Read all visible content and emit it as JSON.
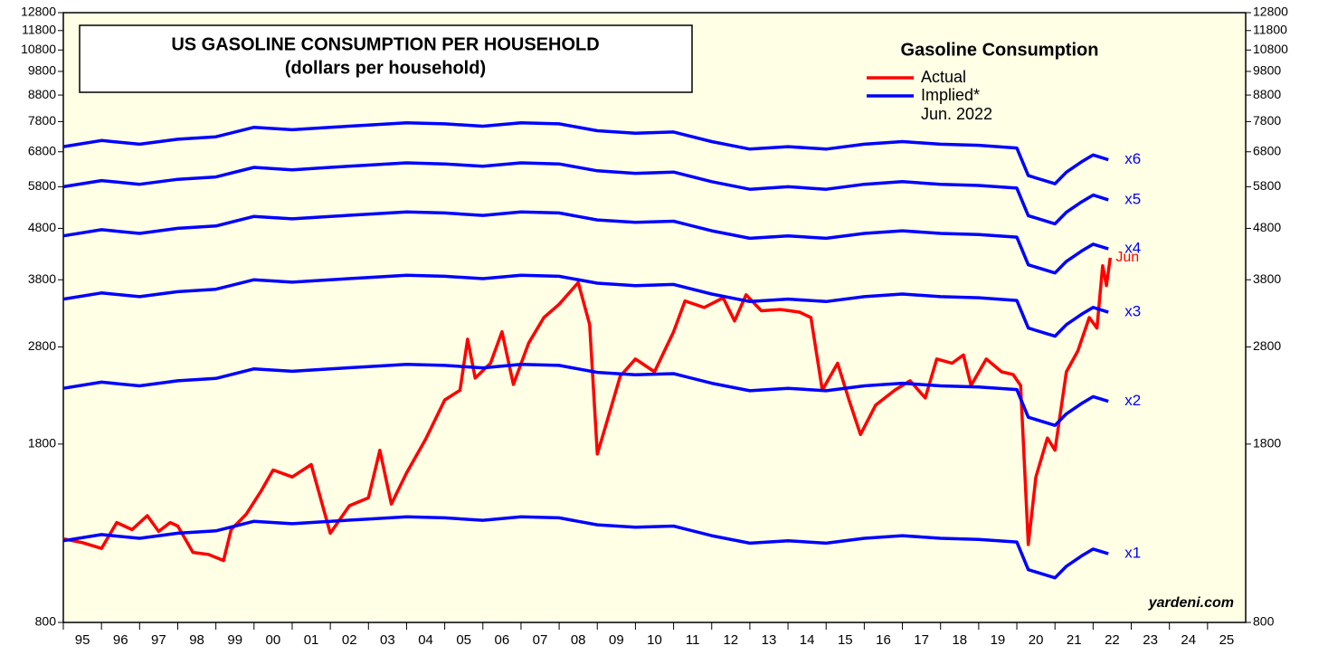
{
  "chart_data": {
    "type": "line",
    "title": "US GASOLINE CONSUMPTION PER HOUSEHOLD",
    "subtitle": "(dollars per household)",
    "legend_title": "Gasoline Consumption",
    "legend_note": "Jun. 2022",
    "source": "yardeni.com",
    "log_scale": true,
    "background": "#ffffe6",
    "ylim": [
      800,
      12800
    ],
    "yticks": [
      800,
      1800,
      2800,
      3800,
      4800,
      5800,
      6800,
      7800,
      8800,
      9800,
      10800,
      11800,
      12800
    ],
    "xlim": [
      1995,
      2026
    ],
    "xticks": [
      {
        "value": 1995,
        "label": "95"
      },
      {
        "value": 1996,
        "label": "96"
      },
      {
        "value": 1997,
        "label": "97"
      },
      {
        "value": 1998,
        "label": "98"
      },
      {
        "value": 1999,
        "label": "99"
      },
      {
        "value": 2000,
        "label": "00"
      },
      {
        "value": 2001,
        "label": "01"
      },
      {
        "value": 2002,
        "label": "02"
      },
      {
        "value": 2003,
        "label": "03"
      },
      {
        "value": 2004,
        "label": "04"
      },
      {
        "value": 2005,
        "label": "05"
      },
      {
        "value": 2006,
        "label": "06"
      },
      {
        "value": 2007,
        "label": "07"
      },
      {
        "value": 2008,
        "label": "08"
      },
      {
        "value": 2009,
        "label": "09"
      },
      {
        "value": 2010,
        "label": "10"
      },
      {
        "value": 2011,
        "label": "11"
      },
      {
        "value": 2012,
        "label": "12"
      },
      {
        "value": 2013,
        "label": "13"
      },
      {
        "value": 2014,
        "label": "14"
      },
      {
        "value": 2015,
        "label": "15"
      },
      {
        "value": 2016,
        "label": "16"
      },
      {
        "value": 2017,
        "label": "17"
      },
      {
        "value": 2018,
        "label": "18"
      },
      {
        "value": 2019,
        "label": "19"
      },
      {
        "value": 2020,
        "label": "20"
      },
      {
        "value": 2021,
        "label": "21"
      },
      {
        "value": 2022,
        "label": "22"
      },
      {
        "value": 2023,
        "label": "23"
      },
      {
        "value": 2024,
        "label": "24"
      },
      {
        "value": 2025,
        "label": "25"
      }
    ],
    "x": [
      1995,
      1996,
      1997,
      1998,
      1999,
      2000,
      2001,
      2002,
      2003,
      2004,
      2005,
      2006,
      2007,
      2008,
      2009,
      2010,
      2011,
      2012,
      2013,
      2014,
      2015,
      2016,
      2017,
      2018,
      2019,
      2020,
      2020.3,
      2021.0,
      2021.3,
      2021.7,
      2022.0,
      2022.4
    ],
    "series": [
      {
        "name": "Actual",
        "color": "#ff0000",
        "end_label": "Jun",
        "x": [
          1995.0,
          1995.5,
          1996.0,
          1996.4,
          1996.8,
          1997.2,
          1997.5,
          1997.8,
          1998.0,
          1998.4,
          1998.8,
          1999.2,
          1999.4,
          1999.8,
          2000.2,
          2000.5,
          2001.0,
          2001.5,
          2002.0,
          2002.5,
          2003.0,
          2003.3,
          2003.6,
          2004.0,
          2004.5,
          2005.0,
          2005.4,
          2005.6,
          2005.8,
          2006.2,
          2006.5,
          2006.8,
          2007.2,
          2007.6,
          2008.0,
          2008.5,
          2008.8,
          2009.0,
          2009.3,
          2009.6,
          2010.0,
          2010.5,
          2011.0,
          2011.3,
          2011.8,
          2012.3,
          2012.6,
          2012.9,
          2013.3,
          2013.8,
          2014.3,
          2014.6,
          2014.9,
          2015.3,
          2015.6,
          2015.9,
          2016.3,
          2016.8,
          2017.2,
          2017.6,
          2017.9,
          2018.3,
          2018.6,
          2018.8,
          2019.2,
          2019.6,
          2019.9,
          2020.1,
          2020.3,
          2020.5,
          2020.8,
          2021.0,
          2021.3,
          2021.6,
          2021.9,
          2022.1,
          2022.25,
          2022.35,
          2022.45
        ],
        "values": [
          1170,
          1150,
          1120,
          1260,
          1220,
          1300,
          1210,
          1260,
          1240,
          1100,
          1090,
          1060,
          1220,
          1310,
          1460,
          1600,
          1550,
          1640,
          1200,
          1360,
          1410,
          1750,
          1370,
          1580,
          1840,
          2200,
          2300,
          2900,
          2430,
          2600,
          3000,
          2360,
          2850,
          3200,
          3400,
          3750,
          3100,
          1720,
          2050,
          2450,
          2650,
          2500,
          3000,
          3450,
          3350,
          3500,
          3150,
          3550,
          3300,
          3320,
          3280,
          3200,
          2300,
          2600,
          2200,
          1880,
          2150,
          2300,
          2400,
          2220,
          2650,
          2600,
          2700,
          2350,
          2650,
          2500,
          2470,
          2350,
          1140,
          1550,
          1850,
          1750,
          2500,
          2750,
          3200,
          3050,
          4050,
          3700,
          4200
        ]
      },
      {
        "name": "Implied*",
        "color": "#0000ff",
        "label": "x1",
        "values": [
          1160,
          1193,
          1173,
          1200,
          1213,
          1267,
          1253,
          1267,
          1280,
          1293,
          1287,
          1273,
          1293,
          1287,
          1247,
          1233,
          1240,
          1187,
          1147,
          1160,
          1147,
          1173,
          1187,
          1173,
          1167,
          1153,
          1017,
          980,
          1033,
          1083,
          1117,
          1093
        ]
      },
      {
        "color": "#0000ff",
        "label": "x2",
        "values": [
          2320,
          2386,
          2346,
          2400,
          2426,
          2534,
          2506,
          2534,
          2560,
          2586,
          2574,
          2546,
          2586,
          2574,
          2494,
          2466,
          2480,
          2374,
          2294,
          2320,
          2294,
          2346,
          2374,
          2346,
          2334,
          2306,
          2034,
          1960,
          2066,
          2166,
          2234,
          2186
        ]
      },
      {
        "color": "#0000ff",
        "label": "x3",
        "values": [
          3480,
          3579,
          3519,
          3600,
          3639,
          3801,
          3759,
          3801,
          3840,
          3879,
          3861,
          3819,
          3879,
          3861,
          3741,
          3699,
          3720,
          3561,
          3441,
          3480,
          3441,
          3519,
          3561,
          3519,
          3501,
          3459,
          3051,
          2940,
          3099,
          3249,
          3351,
          3279
        ]
      },
      {
        "color": "#0000ff",
        "label": "x4",
        "values": [
          4640,
          4772,
          4692,
          4800,
          4852,
          5068,
          5012,
          5068,
          5120,
          5172,
          5148,
          5092,
          5172,
          5148,
          4988,
          4932,
          4960,
          4748,
          4588,
          4640,
          4588,
          4692,
          4748,
          4692,
          4668,
          4612,
          4068,
          3920,
          4132,
          4332,
          4468,
          4372
        ]
      },
      {
        "color": "#0000ff",
        "label": "x5",
        "values": [
          5800,
          5965,
          5865,
          6000,
          6065,
          6335,
          6265,
          6335,
          6400,
          6465,
          6435,
          6365,
          6465,
          6435,
          6235,
          6165,
          6200,
          5935,
          5735,
          5800,
          5735,
          5865,
          5935,
          5865,
          5835,
          5765,
          5085,
          4900,
          5165,
          5415,
          5585,
          5465
        ]
      },
      {
        "color": "#0000ff",
        "label": "x6",
        "values": [
          6960,
          7158,
          7038,
          7200,
          7278,
          7602,
          7518,
          7602,
          7680,
          7758,
          7722,
          7638,
          7758,
          7722,
          7482,
          7398,
          7440,
          7122,
          6882,
          6960,
          6882,
          7038,
          7122,
          7038,
          7002,
          6918,
          6102,
          5880,
          6198,
          6498,
          6702,
          6558
        ]
      }
    ]
  }
}
